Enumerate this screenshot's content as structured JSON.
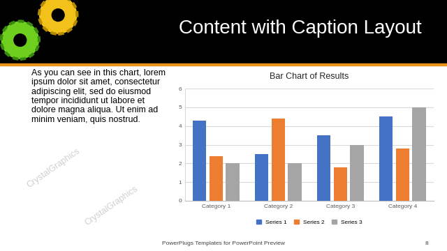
{
  "slide": {
    "title": "Content with Caption Layout",
    "caption": "As you can see in this chart, lorem\nipsum dolor sit amet, consectetur\nadipiscing elit, sed do eiusmod\ntempor incididunt ut labore et\ndolore magna aliqua. Ut enim ad\nminim veniam, quis nostrud.",
    "footer": "PowerPlugs Templates for PowerPoint Preview",
    "page_number": "8",
    "watermark": "CrystalGraphics"
  },
  "chart_data": {
    "type": "bar",
    "title": "Bar Chart of Results",
    "categories": [
      "Category 1",
      "Category 2",
      "Category 3",
      "Category 4"
    ],
    "series": [
      {
        "name": "Series 1",
        "color": "#4472c4",
        "values": [
          4.3,
          2.5,
          3.5,
          4.5
        ]
      },
      {
        "name": "Series 2",
        "color": "#ed7d31",
        "values": [
          2.4,
          4.4,
          1.8,
          2.8
        ]
      },
      {
        "name": "Series 3",
        "color": "#a5a5a5",
        "values": [
          2,
          2,
          3,
          5
        ]
      }
    ],
    "ylim": [
      0,
      6
    ],
    "yticks": [
      0,
      1,
      2,
      3,
      4,
      5,
      6
    ],
    "grid": true,
    "legend": "bottom"
  }
}
